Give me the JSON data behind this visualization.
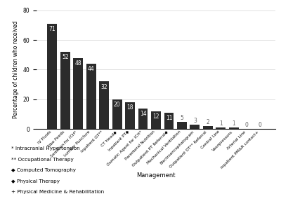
{
  "categories": [
    "IV Fluids",
    "Tube Feeds",
    "Sedation for ICH*",
    "Lumbar Puncture",
    "Inpatient OT**",
    "CT Head◆",
    "Inpatient PT◆",
    "Osmotic Agent for ICH*",
    "Parenteral Nutrition",
    "Outpatient PT Referral◆",
    "Mechanical Ventilation",
    "Electroencephalogram",
    "Outpatient OT** Referral",
    "Central Line",
    "Vasopressors",
    "Arterial Line",
    "Inpatient PM&R contact+"
  ],
  "values": [
    71,
    52,
    48,
    44,
    32,
    20,
    18,
    14,
    12,
    11,
    5,
    3,
    2,
    1,
    1,
    0,
    0
  ],
  "bar_color": "#2b2b2b",
  "ylabel": "Percentage of children who received",
  "xlabel": "Management",
  "ylim": [
    0,
    80
  ],
  "yticks": [
    0,
    20,
    40,
    60,
    80
  ],
  "footnotes": [
    "* Intracranial Hypertension",
    "** Occupational Therapy",
    "◆ Computed Tomography",
    "◆ Physical Therapy",
    "+ Physical Medicine & Rehabilitation"
  ]
}
